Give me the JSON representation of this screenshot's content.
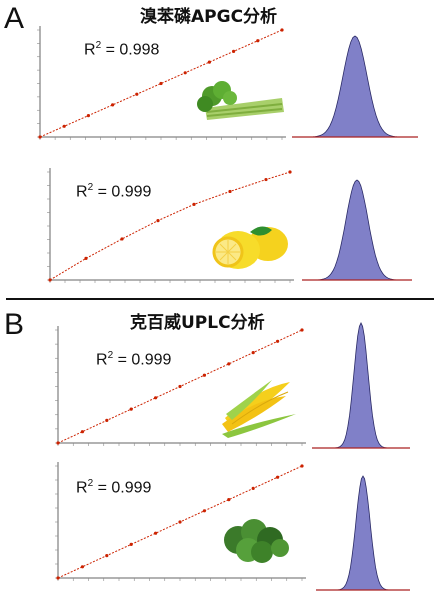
{
  "sections": [
    {
      "letter": "A",
      "title": "溴苯磷APGC分析"
    },
    {
      "letter": "B",
      "title": "克百威UPLC分析"
    }
  ],
  "chart_data": [
    {
      "type": "line",
      "r2_prefix": "R",
      "r2_text": " = 0.998",
      "food": "celery",
      "x": [
        0,
        0.1,
        0.2,
        0.3,
        0.4,
        0.5,
        0.6,
        0.7,
        0.8,
        0.9,
        1.0
      ],
      "y": [
        0,
        0.1,
        0.2,
        0.3,
        0.4,
        0.5,
        0.6,
        0.7,
        0.8,
        0.9,
        1.0
      ],
      "color": "#cc2200",
      "peak_color": "#8080c8"
    },
    {
      "type": "line",
      "r2_prefix": "R",
      "r2_text": " = 0.999",
      "food": "lemon",
      "x": [
        0,
        0.15,
        0.3,
        0.45,
        0.6,
        0.75,
        0.9,
        1.0
      ],
      "y": [
        0,
        0.2,
        0.38,
        0.55,
        0.7,
        0.82,
        0.93,
        1.0
      ],
      "color": "#cc2200",
      "peak_color": "#8080c8"
    },
    {
      "type": "line",
      "r2_prefix": "R",
      "r2_text": " = 0.999",
      "food": "corn",
      "x": [
        0,
        0.1,
        0.2,
        0.3,
        0.4,
        0.5,
        0.6,
        0.7,
        0.8,
        0.9,
        1.0
      ],
      "y": [
        0,
        0.1,
        0.2,
        0.3,
        0.4,
        0.5,
        0.6,
        0.7,
        0.8,
        0.9,
        1.0
      ],
      "color": "#cc2200",
      "peak_color": "#8080c8"
    },
    {
      "type": "line",
      "r2_prefix": "R",
      "r2_text": " = 0.999",
      "food": "kale",
      "x": [
        0,
        0.1,
        0.2,
        0.3,
        0.4,
        0.5,
        0.6,
        0.7,
        0.8,
        0.9,
        1.0
      ],
      "y": [
        0,
        0.1,
        0.2,
        0.3,
        0.4,
        0.5,
        0.6,
        0.7,
        0.8,
        0.9,
        1.0
      ],
      "color": "#cc2200",
      "peak_color": "#8080c8"
    }
  ]
}
